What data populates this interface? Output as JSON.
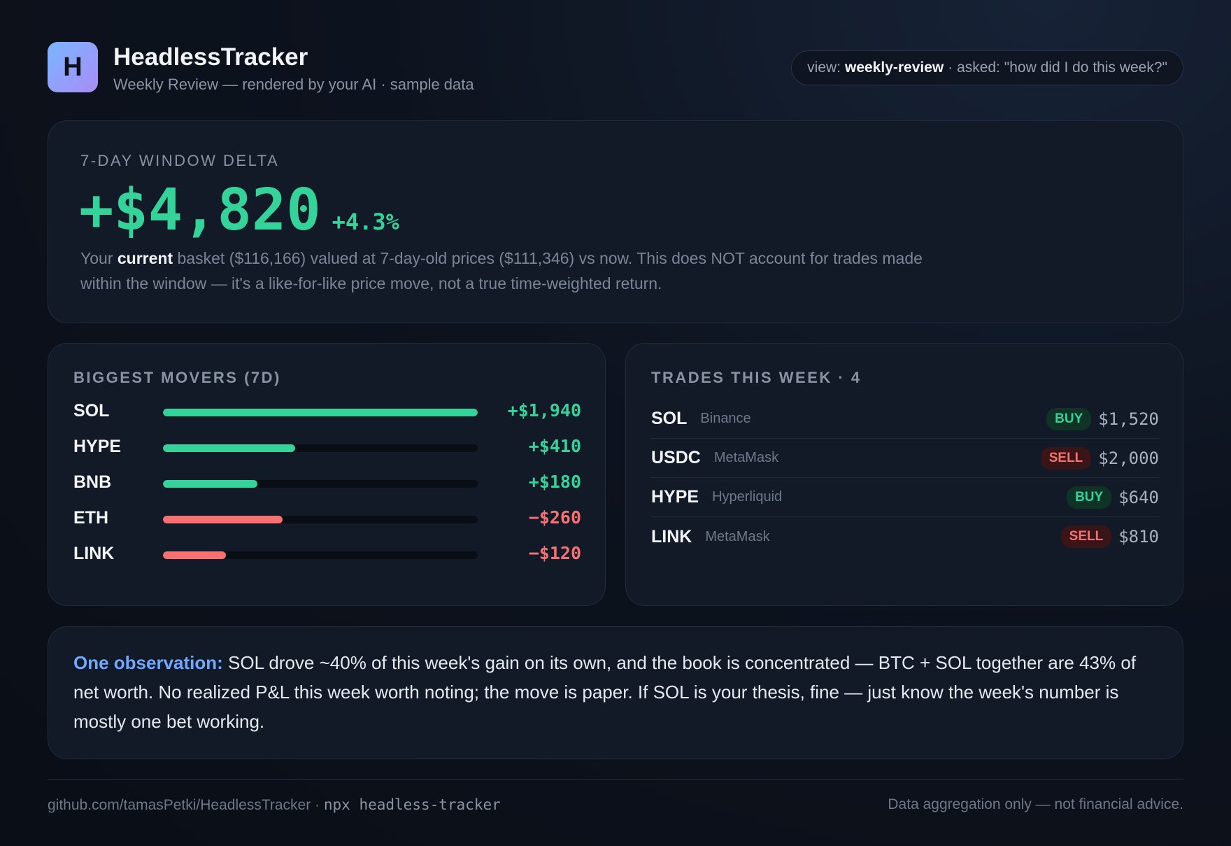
{
  "header": {
    "logo_letter": "H",
    "title": "HeadlessTracker",
    "subtitle": "Weekly Review — rendered by your AI · sample data",
    "view_prefix": "view:",
    "view_name": "weekly-review",
    "view_asked": "· asked: \"how did I do this week?\""
  },
  "delta": {
    "label": "7-DAY WINDOW DELTA",
    "value": "+$4,820",
    "percent": "+4.3%",
    "note_pre": "Your ",
    "note_bold": "current",
    "note_post": " basket ($116,166) valued at 7-day-old prices ($111,346) vs now. This does NOT account for trades made within the window — it's a like-for-like price move, not a true time-weighted return."
  },
  "movers": {
    "title": "BIGGEST MOVERS (7D)",
    "colors": {
      "up": "#34d399",
      "down": "#f87171"
    },
    "items": [
      {
        "symbol": "SOL",
        "value": "+$1,940",
        "amount": 1940,
        "direction": "up"
      },
      {
        "symbol": "HYPE",
        "value": "+$410",
        "amount": 410,
        "direction": "up"
      },
      {
        "symbol": "BNB",
        "value": "+$180",
        "amount": 180,
        "direction": "up"
      },
      {
        "symbol": "ETH",
        "value": "−$260",
        "amount": -260,
        "direction": "down"
      },
      {
        "symbol": "LINK",
        "value": "−$120",
        "amount": -120,
        "direction": "down"
      }
    ],
    "bar_fill": [
      1.0,
      0.42,
      0.3,
      0.38,
      0.2
    ]
  },
  "trades": {
    "title": "TRADES THIS WEEK · 4",
    "items": [
      {
        "symbol": "SOL",
        "venue": "Binance",
        "side": "BUY",
        "amount": "$1,520"
      },
      {
        "symbol": "USDC",
        "venue": "MetaMask",
        "side": "SELL",
        "amount": "$2,000"
      },
      {
        "symbol": "HYPE",
        "venue": "Hyperliquid",
        "side": "BUY",
        "amount": "$640"
      },
      {
        "symbol": "LINK",
        "venue": "MetaMask",
        "side": "SELL",
        "amount": "$810"
      }
    ]
  },
  "observation": {
    "label": "One observation:",
    "text": " SOL drove ~40% of this week's gain on its own, and the book is concentrated — BTC + SOL together are 43% of net worth. No realized P&L this week worth noting; the move is paper. If SOL is your thesis, fine — just know the week's number is mostly one bet working."
  },
  "footer": {
    "repo": "github.com/tamasPetki/HeadlessTracker",
    "separator": " · ",
    "command": "npx headless-tracker",
    "disclaimer": "Data aggregation only — not financial advice."
  }
}
